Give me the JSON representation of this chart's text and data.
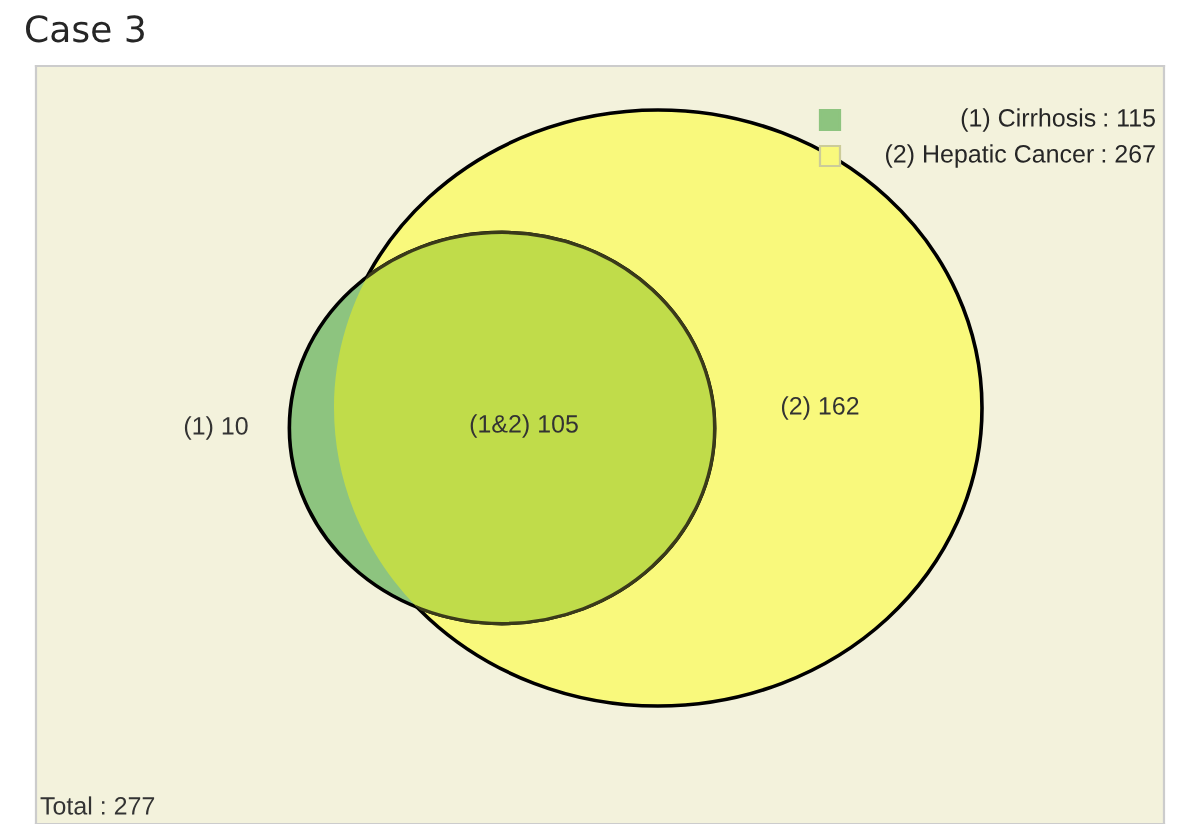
{
  "chart_data": {
    "type": "other",
    "title": "Case 3",
    "categories": [
      "(1) Cirrhosis",
      "(2) Hepatic Cancer"
    ],
    "values": [
      115,
      267
    ],
    "value_labels": [
      ": 115",
      ": 267"
    ],
    "colors": [
      "#8dc47f",
      "#f9f97c"
    ],
    "annotations": [
      "(1) 10",
      "(1&2) 105",
      "(2) 162",
      "Total : 277"
    ]
  }
}
